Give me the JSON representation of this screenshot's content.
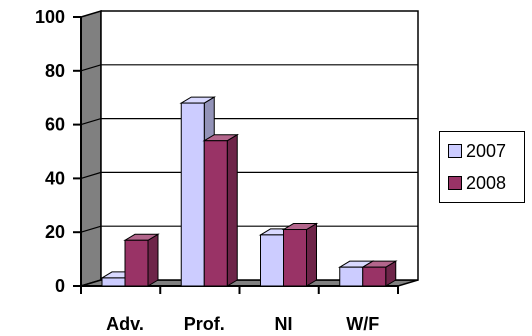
{
  "chart_data": {
    "type": "bar",
    "categories": [
      "Adv.",
      "Prof.",
      "NI",
      "W/F"
    ],
    "series": [
      {
        "name": "2007",
        "values": [
          3,
          68,
          19,
          7
        ],
        "color": "#ccccff"
      },
      {
        "name": "2008",
        "values": [
          17,
          54,
          21,
          7
        ],
        "color": "#993366"
      }
    ],
    "ylim": [
      0,
      100
    ],
    "yticks": [
      0,
      20,
      40,
      60,
      80,
      100
    ],
    "title": "",
    "xlabel": "",
    "ylabel": "",
    "grid": true,
    "legend_position": "right",
    "style": "3d-column",
    "wall_color": "#808080"
  }
}
